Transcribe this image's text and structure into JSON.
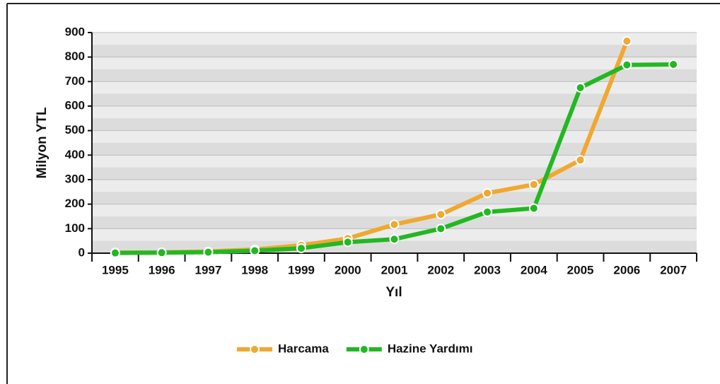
{
  "chart_data": {
    "type": "line",
    "categories": [
      "1995",
      "1996",
      "1997",
      "1998",
      "1999",
      "2000",
      "2001",
      "2002",
      "2003",
      "2004",
      "2005",
      "2006",
      "2007"
    ],
    "series": [
      {
        "name": "Harcama",
        "color": "#f0a830",
        "values": [
          2,
          3,
          7,
          15,
          32,
          60,
          117,
          158,
          245,
          280,
          380,
          865,
          null
        ]
      },
      {
        "name": "Hazine Yardımı",
        "color": "#22b822",
        "values": [
          1,
          2,
          4,
          10,
          20,
          45,
          57,
          100,
          168,
          183,
          675,
          768,
          770
        ]
      }
    ],
    "ylabel": "Milyon YTL",
    "xlabel": "Yıl",
    "ylim": [
      0,
      900
    ],
    "yticks": [
      0,
      100,
      200,
      300,
      400,
      500,
      600,
      700,
      800,
      900
    ],
    "grid": true,
    "legend": "bottom"
  }
}
